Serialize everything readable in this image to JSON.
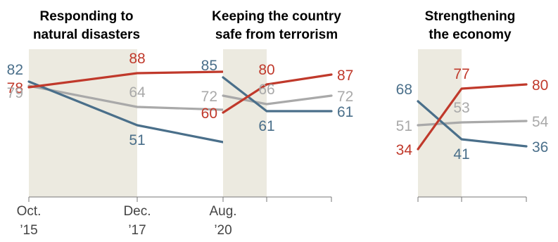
{
  "x_tick_labels": [
    {
      "top": "Oct.",
      "bottom": "’15"
    },
    {
      "top": "Dec.",
      "bottom": "’17"
    },
    {
      "top": "Aug.",
      "bottom": "’20"
    }
  ],
  "colors": {
    "series_red": "#C0392B",
    "series_blue": "#4A6F8A",
    "series_gray": "#A9A9A9",
    "shade": "#ECEAE0",
    "axis": "#777777"
  },
  "chart_data": [
    {
      "type": "line",
      "title_lines": [
        "Responding to",
        "natural disasters"
      ],
      "x": [
        "Oct. ’15",
        "Dec. ’17",
        "Aug. ’20"
      ],
      "ylim": [
        0,
        100
      ],
      "series": [
        {
          "color": "red",
          "values": [
            78,
            88,
            89
          ]
        },
        {
          "color": "blue",
          "values": [
            82,
            51,
            39
          ]
        },
        {
          "color": "gray",
          "values": [
            79,
            64,
            62
          ]
        }
      ]
    },
    {
      "type": "line",
      "title_lines": [
        "Keeping the country",
        "safe from terrorism"
      ],
      "x": [
        "Oct. ’15",
        "Dec. ’17",
        "Aug. ’20"
      ],
      "ylim": [
        0,
        100
      ],
      "series": [
        {
          "color": "red",
          "values": [
            60,
            80,
            87
          ]
        },
        {
          "color": "blue",
          "values": [
            85,
            61,
            61
          ]
        },
        {
          "color": "gray",
          "values": [
            72,
            66,
            72
          ]
        }
      ]
    },
    {
      "type": "line",
      "title_lines": [
        "Strengthening",
        "the economy"
      ],
      "x": [
        "Oct. ’15",
        "Dec. ’17",
        "Aug. ’20"
      ],
      "ylim": [
        0,
        100
      ],
      "series": [
        {
          "color": "red",
          "values": [
            34,
            77,
            80
          ]
        },
        {
          "color": "blue",
          "values": [
            68,
            41,
            36
          ]
        },
        {
          "color": "gray",
          "values": [
            51,
            53,
            54
          ]
        }
      ]
    }
  ]
}
